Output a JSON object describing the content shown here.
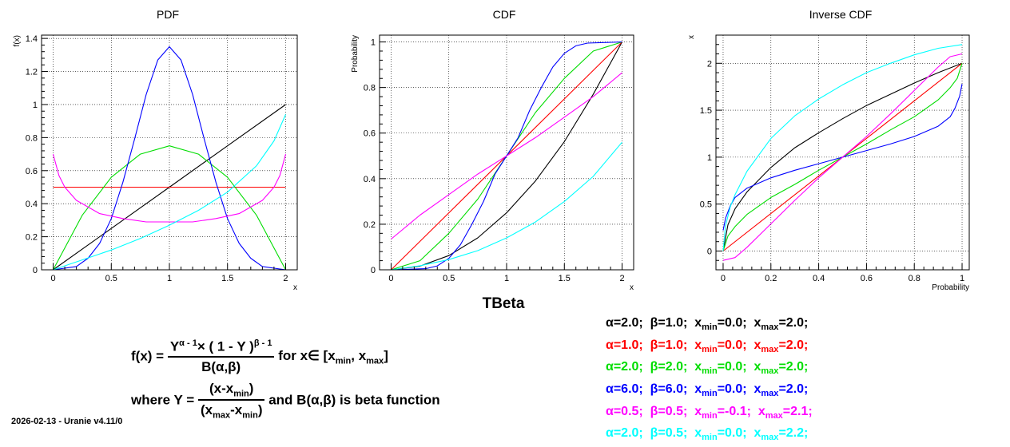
{
  "main_title": "TBeta",
  "footer": "2026-02-13 - Uranie v4.11/0",
  "formula": {
    "lhs": "f(x) =",
    "num_a": "Y",
    "num_a_sup": "α - 1",
    "num_b": "× ( 1 - Y )",
    "num_b_sup": "β - 1",
    "den": "B(α,β)",
    "for_text": "for  x∈ [x",
    "sub_min": "min",
    "comma": ", x",
    "sub_max": "max",
    "close": "]",
    "where": "where Y =",
    "y_num": "(x-x",
    "y_num_sub": "min",
    "y_num_close": ")",
    "y_den_open": "(x",
    "y_den_sub1": "max",
    "y_den_mid": "-x",
    "y_den_sub2": "min",
    "y_den_close": ")",
    "tail": "and B(α,β) is beta function"
  },
  "legend": [
    {
      "color": "#000000",
      "alpha": "α=2.0;",
      "beta": "β=1.0;",
      "xmin_val": "=0.0;",
      "xmax_val": "=2.0;"
    },
    {
      "color": "#ff0000",
      "alpha": "α=1.0;",
      "beta": "β=1.0;",
      "xmin_val": "=0.0;",
      "xmax_val": "=2.0;"
    },
    {
      "color": "#00dd00",
      "alpha": "α=2.0;",
      "beta": "β=2.0;",
      "xmin_val": "=0.0;",
      "xmax_val": "=2.0;"
    },
    {
      "color": "#0000ff",
      "alpha": "α=6.0;",
      "beta": "β=6.0;",
      "xmin_val": "=0.0;",
      "xmax_val": "=2.0;"
    },
    {
      "color": "#ff00ff",
      "alpha": "α=0.5;",
      "beta": "β=0.5;",
      "xmin_val": "=-0.1;",
      "xmax_val": "=2.1;"
    },
    {
      "color": "#00ffff",
      "alpha": "α=2.0;",
      "beta": "β=0.5;",
      "xmin_val": "=0.0;",
      "xmax_val": "=2.2;"
    }
  ],
  "legend_x": "x",
  "legend_min": "min",
  "legend_max": "max",
  "chart_data": [
    {
      "type": "line",
      "title": "PDF",
      "xlabel": "x",
      "ylabel": "f(x)",
      "xlim": [
        -0.1,
        2.1
      ],
      "ylim": [
        0,
        1.42
      ],
      "xticks": [
        0,
        0.5,
        1,
        1.5,
        2
      ],
      "xtick_labels": [
        "0",
        "0.5",
        "1",
        "1.5",
        "2"
      ],
      "yticks": [
        0,
        0.2,
        0.4,
        0.6,
        0.8,
        1,
        1.2,
        1.4
      ],
      "ytick_labels": [
        "0",
        "0.2",
        "0.4",
        "0.6",
        "0.8",
        "1",
        "1.2",
        "1.4"
      ],
      "grid": true,
      "series": [
        {
          "color": "#000000",
          "x": [
            0,
            0.5,
            1,
            1.5,
            2
          ],
          "y": [
            0,
            0.25,
            0.5,
            0.75,
            1.0
          ]
        },
        {
          "color": "#ff0000",
          "x": [
            0,
            1,
            2
          ],
          "y": [
            0.5,
            0.5,
            0.5
          ]
        },
        {
          "color": "#00dd00",
          "x": [
            0,
            0.25,
            0.5,
            0.75,
            1,
            1.25,
            1.5,
            1.75,
            2
          ],
          "y": [
            0,
            0.33,
            0.56,
            0.7,
            0.75,
            0.7,
            0.56,
            0.33,
            0
          ]
        },
        {
          "color": "#0000ff",
          "x": [
            0,
            0.2,
            0.3,
            0.4,
            0.5,
            0.6,
            0.7,
            0.8,
            0.9,
            1.0,
            1.1,
            1.2,
            1.3,
            1.4,
            1.5,
            1.6,
            1.7,
            1.8,
            2.0
          ],
          "y": [
            0,
            0.02,
            0.07,
            0.16,
            0.31,
            0.53,
            0.79,
            1.06,
            1.27,
            1.35,
            1.27,
            1.06,
            0.79,
            0.53,
            0.31,
            0.16,
            0.07,
            0.02,
            0
          ]
        },
        {
          "color": "#ff00ff",
          "x": [
            0,
            0.05,
            0.1,
            0.2,
            0.4,
            0.6,
            0.8,
            1.0,
            1.2,
            1.4,
            1.6,
            1.8,
            1.9,
            1.95,
            2.0
          ],
          "y": [
            0.7,
            0.57,
            0.5,
            0.42,
            0.34,
            0.31,
            0.29,
            0.29,
            0.29,
            0.31,
            0.34,
            0.42,
            0.5,
            0.57,
            0.7
          ]
        },
        {
          "color": "#00ffff",
          "x": [
            0,
            0.25,
            0.5,
            0.75,
            1.0,
            1.25,
            1.5,
            1.75,
            1.9,
            2.0
          ],
          "y": [
            0,
            0.06,
            0.12,
            0.19,
            0.27,
            0.36,
            0.47,
            0.63,
            0.78,
            0.94
          ]
        }
      ]
    },
    {
      "type": "line",
      "title": "CDF",
      "xlabel": "x",
      "ylabel": "Probability",
      "xlim": [
        -0.1,
        2.1
      ],
      "ylim": [
        0,
        1.03
      ],
      "xticks": [
        0,
        0.5,
        1,
        1.5,
        2
      ],
      "xtick_labels": [
        "0",
        "0.5",
        "1",
        "1.5",
        "2"
      ],
      "yticks": [
        0,
        0.2,
        0.4,
        0.6,
        0.8,
        1
      ],
      "ytick_labels": [
        "0",
        "0.2",
        "0.4",
        "0.6",
        "0.8",
        "1"
      ],
      "grid": true,
      "series": [
        {
          "color": "#000000",
          "x": [
            0,
            0.25,
            0.5,
            0.75,
            1,
            1.25,
            1.5,
            1.75,
            2
          ],
          "y": [
            0,
            0.016,
            0.0625,
            0.14,
            0.25,
            0.39,
            0.5625,
            0.77,
            1.0
          ]
        },
        {
          "color": "#ff0000",
          "x": [
            0,
            2
          ],
          "y": [
            0,
            1
          ]
        },
        {
          "color": "#00dd00",
          "x": [
            0,
            0.25,
            0.5,
            0.75,
            1,
            1.25,
            1.5,
            1.75,
            2
          ],
          "y": [
            0,
            0.04,
            0.16,
            0.31,
            0.5,
            0.69,
            0.84,
            0.96,
            1.0
          ]
        },
        {
          "color": "#0000ff",
          "x": [
            0,
            0.3,
            0.4,
            0.5,
            0.6,
            0.7,
            0.8,
            0.9,
            1.0,
            1.1,
            1.2,
            1.3,
            1.4,
            1.5,
            1.6,
            1.7,
            2.0
          ],
          "y": [
            0,
            0.005,
            0.017,
            0.05,
            0.11,
            0.2,
            0.3,
            0.42,
            0.5,
            0.58,
            0.7,
            0.8,
            0.89,
            0.95,
            0.983,
            0.995,
            1.0
          ]
        },
        {
          "color": "#ff00ff",
          "x": [
            0,
            0.25,
            0.5,
            0.75,
            1,
            1.25,
            1.5,
            1.75,
            2
          ],
          "y": [
            0.135,
            0.24,
            0.33,
            0.42,
            0.5,
            0.58,
            0.67,
            0.76,
            0.865
          ]
        },
        {
          "color": "#00ffff",
          "x": [
            0,
            0.25,
            0.5,
            0.75,
            1,
            1.25,
            1.5,
            1.75,
            2
          ],
          "y": [
            0,
            0.018,
            0.045,
            0.084,
            0.14,
            0.21,
            0.3,
            0.41,
            0.56
          ]
        }
      ]
    },
    {
      "type": "line",
      "title": "Inverse CDF",
      "xlabel": "Probability",
      "ylabel": "x",
      "xlim": [
        -0.03,
        1.03
      ],
      "ylim": [
        -0.2,
        2.3
      ],
      "xticks": [
        0,
        0.2,
        0.4,
        0.6,
        0.8,
        1
      ],
      "xtick_labels": [
        "0",
        "0.2",
        "0.4",
        "0.6",
        "0.8",
        "1"
      ],
      "yticks": [
        0,
        0.5,
        1,
        1.5,
        2
      ],
      "ytick_labels": [
        "0",
        "0.5",
        "1",
        "1.5",
        "2"
      ],
      "grid": true,
      "series": [
        {
          "color": "#000000",
          "x": [
            0,
            0.02,
            0.05,
            0.1,
            0.2,
            0.3,
            0.4,
            0.5,
            0.6,
            0.7,
            0.8,
            0.9,
            1.0
          ],
          "y": [
            0,
            0.28,
            0.45,
            0.63,
            0.89,
            1.1,
            1.26,
            1.41,
            1.55,
            1.67,
            1.79,
            1.9,
            2.0
          ]
        },
        {
          "color": "#ff0000",
          "x": [
            0,
            1
          ],
          "y": [
            0,
            2
          ]
        },
        {
          "color": "#00dd00",
          "x": [
            0,
            0.02,
            0.05,
            0.1,
            0.2,
            0.3,
            0.4,
            0.5,
            0.6,
            0.7,
            0.8,
            0.9,
            0.95,
            0.98,
            1.0
          ],
          "y": [
            0,
            0.16,
            0.26,
            0.39,
            0.57,
            0.71,
            0.86,
            1.0,
            1.14,
            1.29,
            1.43,
            1.61,
            1.74,
            1.84,
            2.0
          ]
        },
        {
          "color": "#0000ff",
          "x": [
            0,
            0.01,
            0.03,
            0.05,
            0.1,
            0.2,
            0.3,
            0.4,
            0.5,
            0.6,
            0.7,
            0.8,
            0.9,
            0.95,
            0.97,
            0.99,
            1.0
          ],
          "y": [
            0.22,
            0.35,
            0.48,
            0.57,
            0.67,
            0.78,
            0.86,
            0.93,
            1.0,
            1.07,
            1.14,
            1.22,
            1.33,
            1.43,
            1.52,
            1.65,
            1.78
          ]
        },
        {
          "color": "#ff00ff",
          "x": [
            0,
            0.05,
            0.1,
            0.2,
            0.3,
            0.4,
            0.5,
            0.6,
            0.7,
            0.8,
            0.9,
            0.95,
            1.0
          ],
          "y": [
            -0.1,
            -0.07,
            0.04,
            0.29,
            0.54,
            0.78,
            1.0,
            1.22,
            1.46,
            1.71,
            1.96,
            2.07,
            2.1
          ]
        },
        {
          "color": "#00ffff",
          "x": [
            0,
            0.01,
            0.03,
            0.05,
            0.1,
            0.2,
            0.3,
            0.4,
            0.5,
            0.6,
            0.7,
            0.8,
            0.9,
            1.0
          ],
          "y": [
            0,
            0.27,
            0.47,
            0.6,
            0.85,
            1.2,
            1.44,
            1.62,
            1.77,
            1.9,
            2.0,
            2.09,
            2.16,
            2.2
          ]
        }
      ]
    }
  ]
}
